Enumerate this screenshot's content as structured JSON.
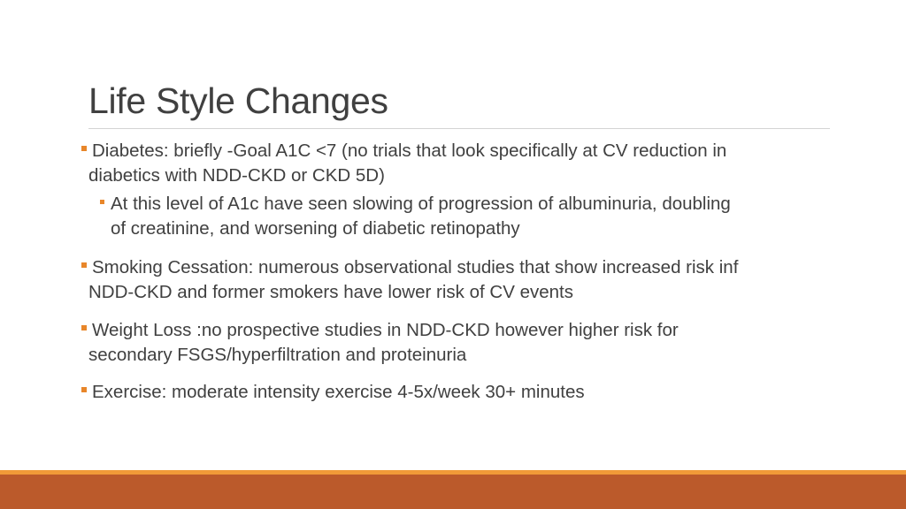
{
  "slide": {
    "title": "Life Style Changes",
    "bullets": [
      {
        "level": 1,
        "lines": [
          "Diabetes: briefly -Goal A1C <7 (no trials that look specifically at CV reduction in",
          "diabetics with NDD-CKD or CKD 5D)"
        ]
      },
      {
        "level": 2,
        "lines": [
          "At this level of A1c have seen slowing of progression of albuminuria, doubling",
          "of creatinine, and worsening of diabetic retinopathy"
        ]
      },
      {
        "level": 1,
        "lines": [
          "Smoking Cessation: numerous observational studies that show increased risk inf",
          "NDD-CKD and former smokers have lower risk of CV events"
        ]
      },
      {
        "level": 1,
        "lines": [
          "Weight Loss :no prospective studies in NDD-CKD however higher risk for",
          "secondary FSGS/hyperfiltration and proteinuria"
        ]
      },
      {
        "level": 1,
        "lines": [
          "Exercise: moderate intensity exercise 4-5x/week 30+ minutes"
        ]
      }
    ]
  },
  "theme": {
    "bullet_color": "#e8862a",
    "footer_accent": "#f19a38",
    "footer_bar": "#bb5a2b",
    "text_color": "#404040"
  }
}
